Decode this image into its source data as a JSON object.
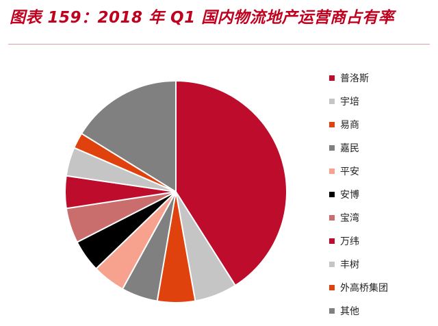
{
  "header": {
    "title": "图表 159：2018 年 Q1 国内物流地产运营商占有率"
  },
  "chart_data": {
    "type": "pie",
    "title": "",
    "legend": "right",
    "start": "12 o'clock, clockwise",
    "slices": [
      {
        "label": "普洛斯",
        "value": 41.0,
        "color": "#be0c2c"
      },
      {
        "label": "宇培",
        "value": 6.2,
        "color": "#c5c5c5"
      },
      {
        "label": "易商",
        "value": 5.5,
        "color": "#e0420e"
      },
      {
        "label": "嘉民",
        "value": 5.3,
        "color": "#808080"
      },
      {
        "label": "平安",
        "value": 4.8,
        "color": "#f6a28f"
      },
      {
        "label": "安博",
        "value": 4.7,
        "color": "#000000"
      },
      {
        "label": "宝湾",
        "value": 5.1,
        "color": "#ca6d6d"
      },
      {
        "label": "万纬",
        "value": 4.7,
        "color": "#be0c2c"
      },
      {
        "label": "丰树",
        "value": 4.2,
        "color": "#c5c5c5"
      },
      {
        "label": "外高桥集团",
        "value": 2.3,
        "color": "#e0420e"
      },
      {
        "label": "其他",
        "value": 16.2,
        "color": "#808080"
      }
    ]
  }
}
